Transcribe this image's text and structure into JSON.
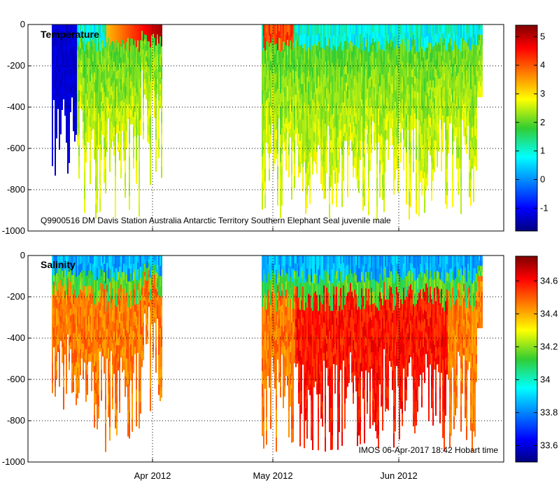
{
  "chart_data": [
    {
      "type": "heatmap",
      "title": "Temperature",
      "annotation": "Q9900516 DM Davis Station Australia Antarctic Territory Southern Elephant Seal juvenile male",
      "ylim": [
        -1000,
        0
      ],
      "yticks": [
        0,
        -200,
        -400,
        -600,
        -800,
        -1000
      ],
      "ytick_labels": [
        "0",
        "-200",
        "-400",
        "-600",
        "-800",
        "-1000"
      ],
      "xticks": [
        "Apr 2012",
        "May 2012",
        "Jun 2012"
      ],
      "show_x_labels": false,
      "grid": true,
      "colorbar": {
        "min": -1.8,
        "max": 5.4,
        "ticks": [
          5,
          4,
          3,
          2,
          1,
          0,
          -1
        ],
        "tick_labels": [
          "5",
          "4",
          "3",
          "2",
          "1",
          "0",
          "-1"
        ]
      }
    },
    {
      "type": "heatmap",
      "title": "Salinity",
      "annotation": "IMOS 06-Apr-2017 18:42 Hobart time",
      "ylim": [
        -1000,
        0
      ],
      "yticks": [
        0,
        -200,
        -400,
        -600,
        -800,
        -1000
      ],
      "ytick_labels": [
        "0",
        "-200",
        "-400",
        "-600",
        "-800",
        "-1000"
      ],
      "xticks": [
        "Apr 2012",
        "May 2012",
        "Jun 2012"
      ],
      "show_x_labels": true,
      "grid": true,
      "colorbar": {
        "min": 33.5,
        "max": 34.75,
        "ticks": [
          34.6,
          34.4,
          34.2,
          34,
          33.8,
          33.6
        ],
        "tick_labels": [
          "34.6",
          "34.4",
          "34.2",
          "34",
          "33.8",
          "33.6"
        ]
      }
    }
  ]
}
